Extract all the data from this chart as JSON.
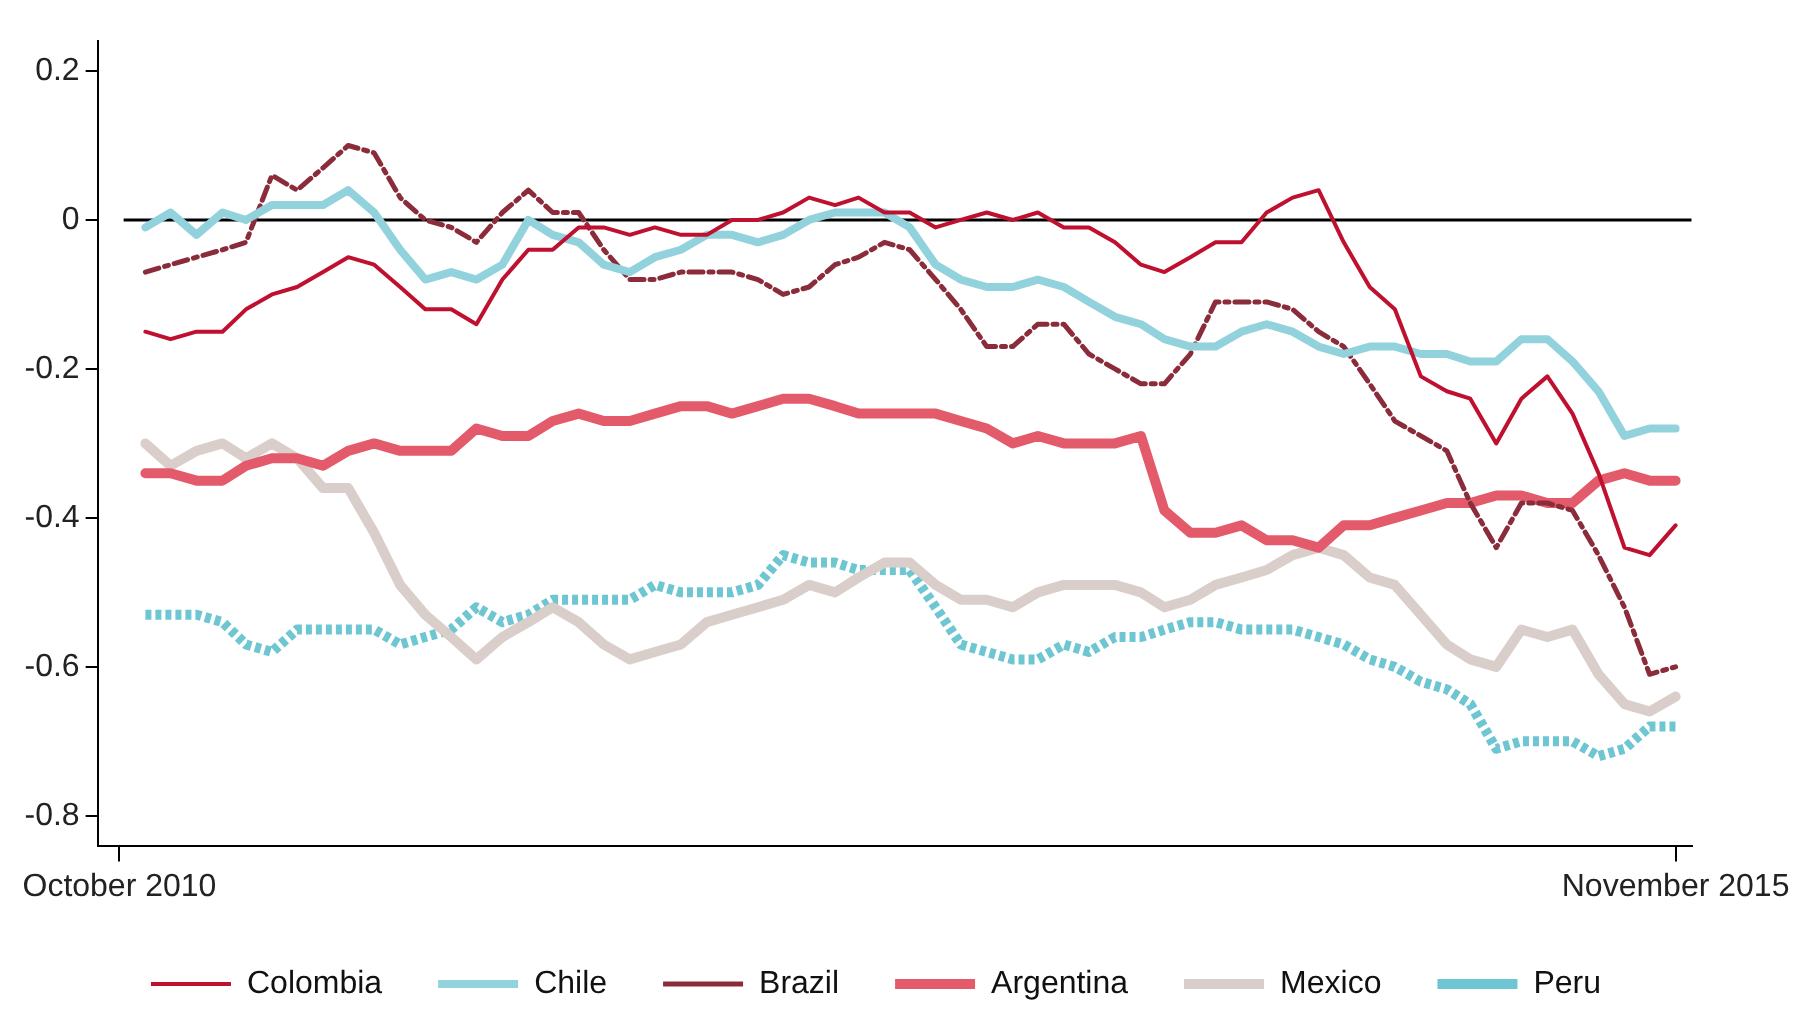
{
  "chart_data": {
    "type": "line",
    "x": [
      "2010-11",
      "2010-12",
      "2011-01",
      "2011-02",
      "2011-03",
      "2011-04",
      "2011-05",
      "2011-06",
      "2011-07",
      "2011-08",
      "2011-09",
      "2011-10",
      "2011-11",
      "2011-12",
      "2012-01",
      "2012-02",
      "2012-03",
      "2012-04",
      "2012-05",
      "2012-06",
      "2012-07",
      "2012-08",
      "2012-09",
      "2012-10",
      "2012-11",
      "2012-12",
      "2013-01",
      "2013-02",
      "2013-03",
      "2013-04",
      "2013-05",
      "2013-06",
      "2013-07",
      "2013-08",
      "2013-09",
      "2013-10",
      "2013-11",
      "2013-12",
      "2014-01",
      "2014-02",
      "2014-03",
      "2014-04",
      "2014-05",
      "2014-06",
      "2014-07",
      "2014-08",
      "2014-09",
      "2014-10",
      "2014-11",
      "2014-12",
      "2015-01",
      "2015-02",
      "2015-03",
      "2015-04",
      "2015-05",
      "2015-06",
      "2015-07",
      "2015-08",
      "2015-09",
      "2015-10",
      "2015-11"
    ],
    "series": [
      {
        "name": "Colombia",
        "color": "#c0102f",
        "line_style": "solid",
        "values": [
          -0.15,
          -0.16,
          -0.15,
          -0.15,
          -0.12,
          -0.1,
          -0.09,
          -0.07,
          -0.05,
          -0.06,
          -0.09,
          -0.12,
          -0.12,
          -0.14,
          -0.08,
          -0.04,
          -0.04,
          -0.01,
          -0.01,
          -0.02,
          -0.01,
          -0.02,
          -0.02,
          0.0,
          0.0,
          0.01,
          0.03,
          0.02,
          0.03,
          0.01,
          0.01,
          -0.01,
          0.0,
          0.01,
          0.0,
          0.01,
          -0.01,
          -0.01,
          -0.03,
          -0.06,
          -0.07,
          -0.05,
          -0.03,
          -0.03,
          0.01,
          0.03,
          0.04,
          -0.03,
          -0.09,
          -0.12,
          -0.21,
          -0.23,
          -0.24,
          -0.3,
          -0.24,
          -0.21,
          -0.26,
          -0.34,
          -0.44,
          -0.45,
          -0.41
        ]
      },
      {
        "name": "Chile",
        "color": "#92d2dc",
        "line_style": "solid",
        "values": [
          -0.01,
          0.01,
          -0.02,
          0.01,
          0.0,
          0.02,
          0.02,
          0.02,
          0.04,
          0.01,
          -0.04,
          -0.08,
          -0.07,
          -0.08,
          -0.06,
          0.0,
          -0.02,
          -0.03,
          -0.06,
          -0.07,
          -0.05,
          -0.04,
          -0.02,
          -0.02,
          -0.03,
          -0.02,
          0.0,
          0.01,
          0.01,
          0.01,
          -0.01,
          -0.06,
          -0.08,
          -0.09,
          -0.09,
          -0.08,
          -0.09,
          -0.11,
          -0.13,
          -0.14,
          -0.16,
          -0.17,
          -0.17,
          -0.15,
          -0.14,
          -0.15,
          -0.17,
          -0.18,
          -0.17,
          -0.17,
          -0.18,
          -0.18,
          -0.19,
          -0.19,
          -0.16,
          -0.16,
          -0.19,
          -0.23,
          -0.29,
          -0.28,
          -0.28
        ]
      },
      {
        "name": "Brazil",
        "color": "#8b2c3b",
        "line_style": "dashed",
        "values": [
          -0.07,
          -0.06,
          -0.05,
          -0.04,
          -0.03,
          0.06,
          0.04,
          0.07,
          0.1,
          0.09,
          0.03,
          0.0,
          -0.01,
          -0.03,
          0.01,
          0.04,
          0.01,
          0.01,
          -0.04,
          -0.08,
          -0.08,
          -0.07,
          -0.07,
          -0.07,
          -0.08,
          -0.1,
          -0.09,
          -0.06,
          -0.05,
          -0.03,
          -0.04,
          -0.08,
          -0.12,
          -0.17,
          -0.17,
          -0.14,
          -0.14,
          -0.18,
          -0.2,
          -0.22,
          -0.22,
          -0.18,
          -0.11,
          -0.11,
          -0.11,
          -0.12,
          -0.15,
          -0.17,
          -0.22,
          -0.27,
          -0.29,
          -0.31,
          -0.38,
          -0.44,
          -0.38,
          -0.38,
          -0.39,
          -0.45,
          -0.52,
          -0.61,
          -0.6
        ]
      },
      {
        "name": "Argentina",
        "color": "#e35b6b",
        "line_style": "solid",
        "values": [
          -0.34,
          -0.34,
          -0.35,
          -0.35,
          -0.33,
          -0.32,
          -0.32,
          -0.33,
          -0.31,
          -0.3,
          -0.31,
          -0.31,
          -0.31,
          -0.28,
          -0.29,
          -0.29,
          -0.27,
          -0.26,
          -0.27,
          -0.27,
          -0.26,
          -0.25,
          -0.25,
          -0.26,
          -0.25,
          -0.24,
          -0.24,
          -0.25,
          -0.26,
          -0.26,
          -0.26,
          -0.26,
          -0.27,
          -0.28,
          -0.3,
          -0.29,
          -0.3,
          -0.3,
          -0.3,
          -0.29,
          -0.39,
          -0.42,
          -0.42,
          -0.41,
          -0.43,
          -0.43,
          -0.44,
          -0.41,
          -0.41,
          -0.4,
          -0.39,
          -0.38,
          -0.38,
          -0.37,
          -0.37,
          -0.38,
          -0.38,
          -0.35,
          -0.34,
          -0.35,
          -0.35
        ]
      },
      {
        "name": "Mexico",
        "color": "#d9cec9",
        "line_style": "solid",
        "values": [
          -0.3,
          -0.33,
          -0.31,
          -0.3,
          -0.32,
          -0.3,
          -0.32,
          -0.36,
          -0.36,
          -0.42,
          -0.49,
          -0.53,
          -0.56,
          -0.59,
          -0.56,
          -0.54,
          -0.52,
          -0.54,
          -0.57,
          -0.59,
          -0.58,
          -0.57,
          -0.54,
          -0.53,
          -0.52,
          -0.51,
          -0.49,
          -0.5,
          -0.48,
          -0.46,
          -0.46,
          -0.49,
          -0.51,
          -0.51,
          -0.52,
          -0.5,
          -0.49,
          -0.49,
          -0.49,
          -0.5,
          -0.52,
          -0.51,
          -0.49,
          -0.48,
          -0.47,
          -0.45,
          -0.44,
          -0.45,
          -0.48,
          -0.49,
          -0.53,
          -0.57,
          -0.59,
          -0.6,
          -0.55,
          -0.56,
          -0.55,
          -0.61,
          -0.65,
          -0.66,
          -0.64
        ]
      },
      {
        "name": "Peru",
        "color": "#6ec6d2",
        "line_style": "dotted",
        "values": [
          -0.53,
          -0.53,
          -0.53,
          -0.54,
          -0.57,
          -0.58,
          -0.55,
          -0.55,
          -0.55,
          -0.55,
          -0.57,
          -0.56,
          -0.55,
          -0.52,
          -0.54,
          -0.53,
          -0.51,
          -0.51,
          -0.51,
          -0.51,
          -0.49,
          -0.5,
          -0.5,
          -0.5,
          -0.49,
          -0.45,
          -0.46,
          -0.46,
          -0.47,
          -0.47,
          -0.47,
          -0.52,
          -0.57,
          -0.58,
          -0.59,
          -0.59,
          -0.57,
          -0.58,
          -0.56,
          -0.56,
          -0.55,
          -0.54,
          -0.54,
          -0.55,
          -0.55,
          -0.55,
          -0.56,
          -0.57,
          -0.59,
          -0.6,
          -0.62,
          -0.63,
          -0.65,
          -0.71,
          -0.7,
          -0.7,
          -0.7,
          -0.72,
          -0.71,
          -0.68,
          -0.68
        ]
      }
    ],
    "xlim": [
      "2010-09-05",
      "2015-11-20"
    ],
    "xticks": [
      {
        "value": "2010-10",
        "label": "October 2010"
      },
      {
        "value": "2015-11",
        "label": "November 2015"
      }
    ],
    "ylim": [
      -0.84,
      0.24
    ],
    "yticks": [
      -0.8,
      -0.6,
      -0.4,
      -0.2,
      0,
      0.2
    ],
    "ref_lines": [
      {
        "axis": "y",
        "value": 0,
        "color": "#000000"
      }
    ],
    "grid": false,
    "legend": "bottom",
    "marker": "none"
  }
}
